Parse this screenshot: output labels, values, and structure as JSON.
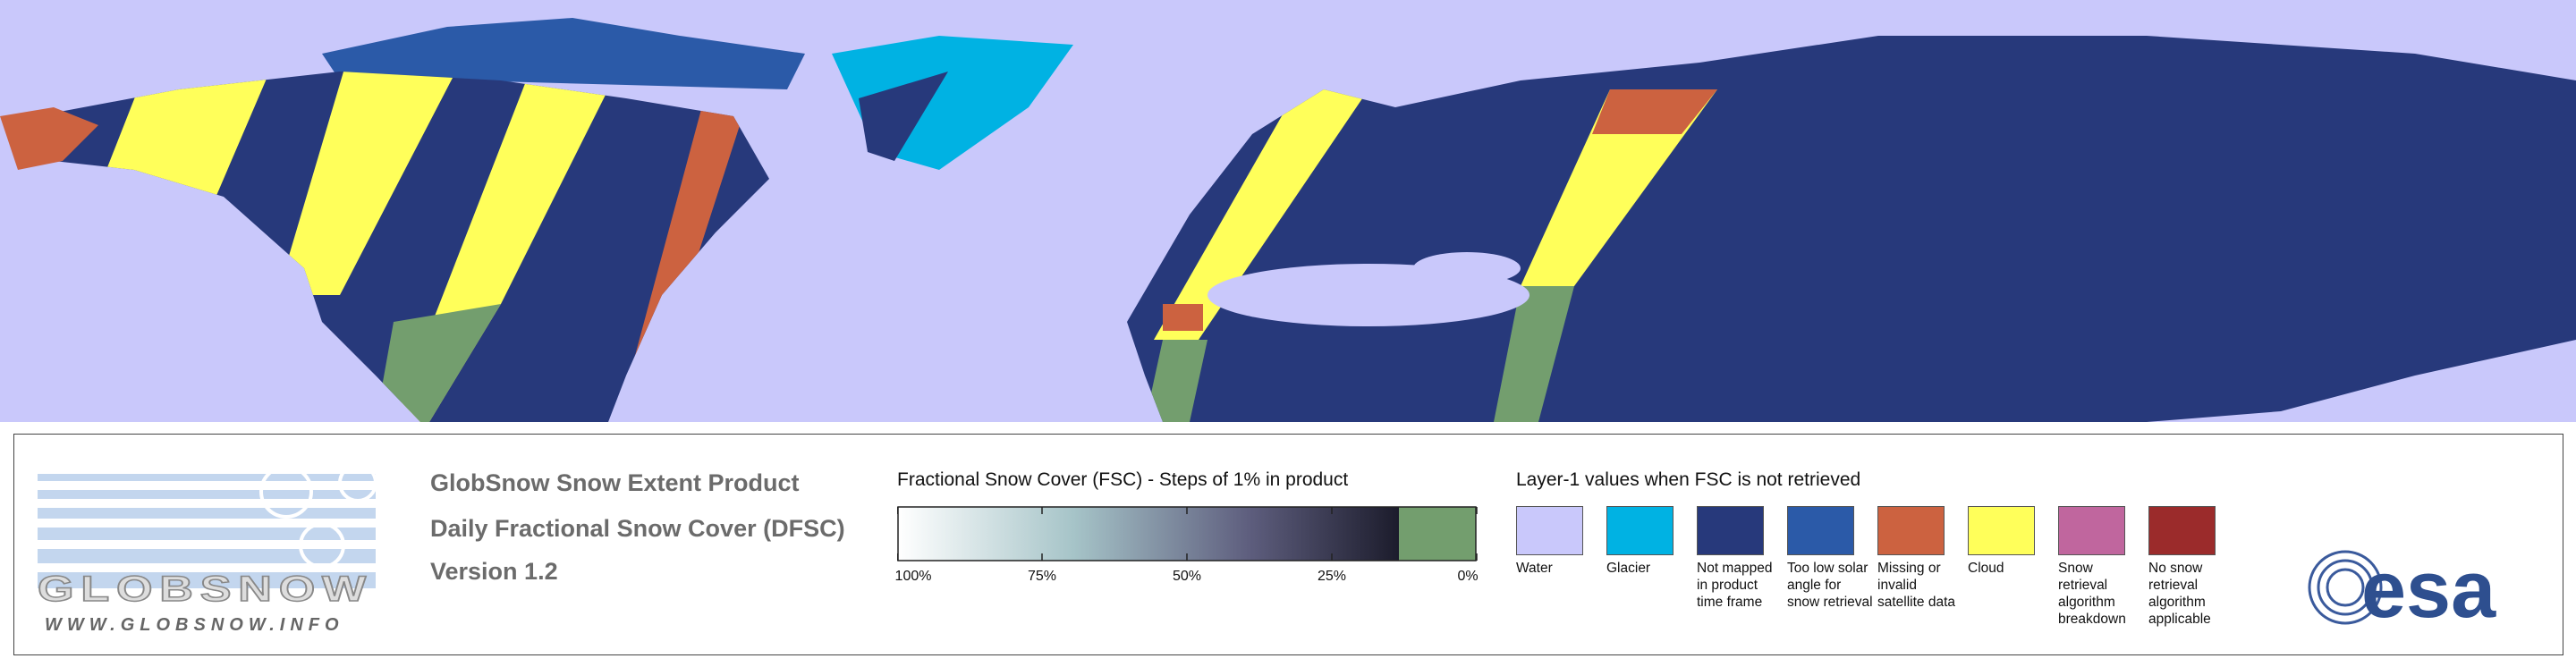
{
  "logo": {
    "name": "GLOBSNOW",
    "url": "WWW.GLOBSNOW.INFO"
  },
  "product": {
    "lines": [
      "GlobSnow Snow Extent Product",
      "Daily Fractional Snow Cover (DFSC)",
      "Version 1.2"
    ]
  },
  "fsc_scale": {
    "title": "Fractional Snow Cover (FSC) - Steps of 1% in product",
    "ticks": [
      {
        "value": 100,
        "label": "100%"
      },
      {
        "value": 75,
        "label": "75%"
      },
      {
        "value": 50,
        "label": "50%"
      },
      {
        "value": 25,
        "label": "25%"
      },
      {
        "value": 0,
        "label": "0%"
      }
    ]
  },
  "layer1": {
    "title": "Layer-1 values when FSC is not retrieved",
    "classes": [
      {
        "label": "Water",
        "color": "#c9c8fb"
      },
      {
        "label": "Glacier",
        "color": "#00b2e3"
      },
      {
        "label": "Not mapped in product time frame",
        "color": "#27397b"
      },
      {
        "label": "Too low solar angle for snow retrieval",
        "color": "#2b5aa8"
      },
      {
        "label": "Missing or invalid satellite data",
        "color": "#cc6240"
      },
      {
        "label": "Cloud",
        "color": "#ffff5a"
      },
      {
        "label": "Snow retrieval algorithm breakdown",
        "color": "#c0669e"
      },
      {
        "label": "No snow retrieval algorithm applicable",
        "color": "#9b2b2b"
      }
    ]
  },
  "esa_logo": "esa"
}
